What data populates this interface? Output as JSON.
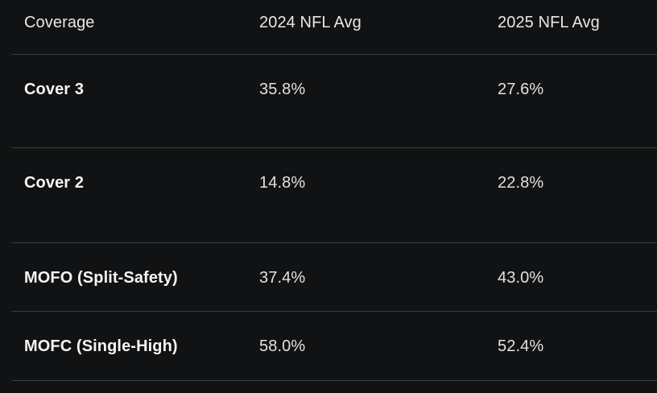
{
  "table": {
    "columns": [
      {
        "label": "Coverage"
      },
      {
        "label": "2024 NFL Avg"
      },
      {
        "label": "2025 NFL Avg"
      }
    ],
    "rows": [
      {
        "coverage": "Cover 3",
        "avg_2024": "35.8%",
        "avg_2025": "27.6%"
      },
      {
        "coverage": "Cover 2",
        "avg_2024": "14.8%",
        "avg_2025": "22.8%"
      },
      {
        "coverage": "MOFO (Split-Safety)",
        "avg_2024": "37.4%",
        "avg_2025": "43.0%"
      },
      {
        "coverage": "MOFC (Single-High)",
        "avg_2024": "58.0%",
        "avg_2025": "52.4%"
      }
    ],
    "colors": {
      "background": "#111213",
      "divider": "#3b3d3f",
      "header_text": "#e9e7e4",
      "row_label_text": "#f5f4f2",
      "value_text": "#e2e1df"
    }
  },
  "chart_data": {
    "type": "table",
    "title": "",
    "columns": [
      "Coverage",
      "2024 NFL Avg",
      "2025 NFL Avg"
    ],
    "categories": [
      "Cover 3",
      "Cover 2",
      "MOFO (Split-Safety)",
      "MOFC (Single-High)"
    ],
    "series": [
      {
        "name": "2024 NFL Avg",
        "values": [
          35.8,
          14.8,
          37.4,
          58.0
        ]
      },
      {
        "name": "2025 NFL Avg",
        "values": [
          27.6,
          22.8,
          43.0,
          52.4
        ]
      }
    ],
    "rows": [
      [
        "Cover 3",
        "35.8%",
        "27.6%"
      ],
      [
        "Cover 2",
        "14.8%",
        "22.8%"
      ],
      [
        "MOFO (Split-Safety)",
        "37.4%",
        "43.0%"
      ],
      [
        "MOFC (Single-High)",
        "58.0%",
        "52.4%"
      ]
    ],
    "legend_position": "none",
    "grid": "horizontal-dividers"
  }
}
